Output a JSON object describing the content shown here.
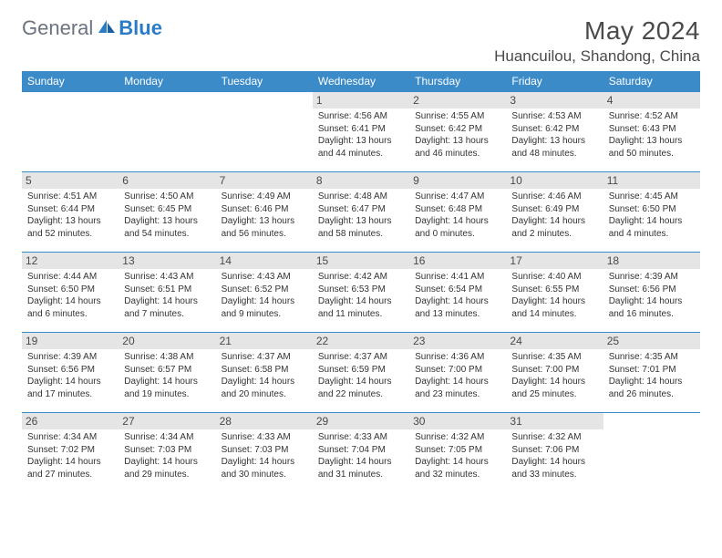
{
  "logo": {
    "text1": "General",
    "text2": "Blue"
  },
  "title": "May 2024",
  "location": "Huancuilou, Shandong, China",
  "colors": {
    "header_bg": "#3b8bc8",
    "header_text": "#ffffff",
    "day_shade": "#e5e5e5",
    "border": "#3b8bc8",
    "logo_gray": "#6b7280",
    "logo_blue": "#2a7cc7",
    "text": "#4a4a4a"
  },
  "days_of_week": [
    "Sunday",
    "Monday",
    "Tuesday",
    "Wednesday",
    "Thursday",
    "Friday",
    "Saturday"
  ],
  "grid": [
    [
      null,
      null,
      null,
      {
        "n": "1",
        "sr": "4:56 AM",
        "ss": "6:41 PM",
        "dl": "13 hours and 44 minutes."
      },
      {
        "n": "2",
        "sr": "4:55 AM",
        "ss": "6:42 PM",
        "dl": "13 hours and 46 minutes."
      },
      {
        "n": "3",
        "sr": "4:53 AM",
        "ss": "6:42 PM",
        "dl": "13 hours and 48 minutes."
      },
      {
        "n": "4",
        "sr": "4:52 AM",
        "ss": "6:43 PM",
        "dl": "13 hours and 50 minutes."
      }
    ],
    [
      {
        "n": "5",
        "sr": "4:51 AM",
        "ss": "6:44 PM",
        "dl": "13 hours and 52 minutes."
      },
      {
        "n": "6",
        "sr": "4:50 AM",
        "ss": "6:45 PM",
        "dl": "13 hours and 54 minutes."
      },
      {
        "n": "7",
        "sr": "4:49 AM",
        "ss": "6:46 PM",
        "dl": "13 hours and 56 minutes."
      },
      {
        "n": "8",
        "sr": "4:48 AM",
        "ss": "6:47 PM",
        "dl": "13 hours and 58 minutes."
      },
      {
        "n": "9",
        "sr": "4:47 AM",
        "ss": "6:48 PM",
        "dl": "14 hours and 0 minutes."
      },
      {
        "n": "10",
        "sr": "4:46 AM",
        "ss": "6:49 PM",
        "dl": "14 hours and 2 minutes."
      },
      {
        "n": "11",
        "sr": "4:45 AM",
        "ss": "6:50 PM",
        "dl": "14 hours and 4 minutes."
      }
    ],
    [
      {
        "n": "12",
        "sr": "4:44 AM",
        "ss": "6:50 PM",
        "dl": "14 hours and 6 minutes."
      },
      {
        "n": "13",
        "sr": "4:43 AM",
        "ss": "6:51 PM",
        "dl": "14 hours and 7 minutes."
      },
      {
        "n": "14",
        "sr": "4:43 AM",
        "ss": "6:52 PM",
        "dl": "14 hours and 9 minutes."
      },
      {
        "n": "15",
        "sr": "4:42 AM",
        "ss": "6:53 PM",
        "dl": "14 hours and 11 minutes."
      },
      {
        "n": "16",
        "sr": "4:41 AM",
        "ss": "6:54 PM",
        "dl": "14 hours and 13 minutes."
      },
      {
        "n": "17",
        "sr": "4:40 AM",
        "ss": "6:55 PM",
        "dl": "14 hours and 14 minutes."
      },
      {
        "n": "18",
        "sr": "4:39 AM",
        "ss": "6:56 PM",
        "dl": "14 hours and 16 minutes."
      }
    ],
    [
      {
        "n": "19",
        "sr": "4:39 AM",
        "ss": "6:56 PM",
        "dl": "14 hours and 17 minutes."
      },
      {
        "n": "20",
        "sr": "4:38 AM",
        "ss": "6:57 PM",
        "dl": "14 hours and 19 minutes."
      },
      {
        "n": "21",
        "sr": "4:37 AM",
        "ss": "6:58 PM",
        "dl": "14 hours and 20 minutes."
      },
      {
        "n": "22",
        "sr": "4:37 AM",
        "ss": "6:59 PM",
        "dl": "14 hours and 22 minutes."
      },
      {
        "n": "23",
        "sr": "4:36 AM",
        "ss": "7:00 PM",
        "dl": "14 hours and 23 minutes."
      },
      {
        "n": "24",
        "sr": "4:35 AM",
        "ss": "7:00 PM",
        "dl": "14 hours and 25 minutes."
      },
      {
        "n": "25",
        "sr": "4:35 AM",
        "ss": "7:01 PM",
        "dl": "14 hours and 26 minutes."
      }
    ],
    [
      {
        "n": "26",
        "sr": "4:34 AM",
        "ss": "7:02 PM",
        "dl": "14 hours and 27 minutes."
      },
      {
        "n": "27",
        "sr": "4:34 AM",
        "ss": "7:03 PM",
        "dl": "14 hours and 29 minutes."
      },
      {
        "n": "28",
        "sr": "4:33 AM",
        "ss": "7:03 PM",
        "dl": "14 hours and 30 minutes."
      },
      {
        "n": "29",
        "sr": "4:33 AM",
        "ss": "7:04 PM",
        "dl": "14 hours and 31 minutes."
      },
      {
        "n": "30",
        "sr": "4:32 AM",
        "ss": "7:05 PM",
        "dl": "14 hours and 32 minutes."
      },
      {
        "n": "31",
        "sr": "4:32 AM",
        "ss": "7:06 PM",
        "dl": "14 hours and 33 minutes."
      },
      null
    ]
  ],
  "labels": {
    "sunrise": "Sunrise:",
    "sunset": "Sunset:",
    "daylight": "Daylight:"
  }
}
